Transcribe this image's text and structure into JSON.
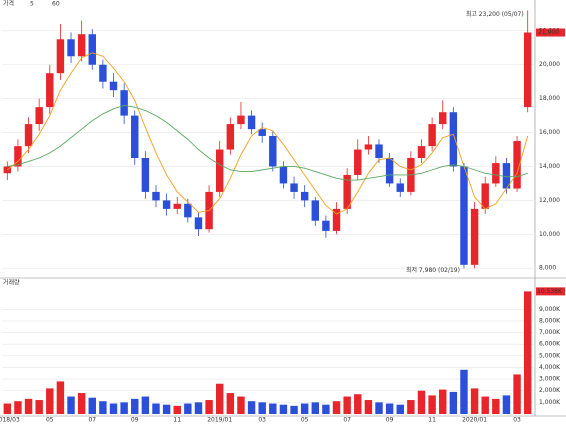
{
  "chart_data": {
    "type": "candlestick",
    "title": "가격",
    "categories": [
      "2018/03",
      null,
      null,
      null,
      "05",
      null,
      null,
      null,
      "07",
      null,
      null,
      null,
      "09",
      null,
      null,
      null,
      "11",
      null,
      null,
      null,
      "2019/01",
      null,
      null,
      null,
      "03",
      null,
      null,
      null,
      "05",
      null,
      null,
      null,
      "07",
      null,
      null,
      null,
      "09",
      null,
      null,
      null,
      "11",
      null,
      null,
      null,
      "2020/01",
      null,
      null,
      null,
      "03",
      null
    ],
    "open": [
      13600,
      14000,
      15200,
      16500,
      17500,
      19500,
      21500,
      20500,
      21800,
      20000,
      19000,
      18500,
      17000,
      14500,
      12500,
      12000,
      11500,
      11800,
      11000,
      10300,
      12500,
      15000,
      16500,
      17000,
      16200,
      15800,
      14000,
      13000,
      12500,
      12000,
      10800,
      10200,
      11500,
      13500,
      15000,
      15300,
      14500,
      13000,
      12500,
      14500,
      15200,
      16500,
      17200,
      14000,
      8200,
      11500,
      13000,
      14200,
      12700,
      17500
    ],
    "high": [
      14300,
      15600,
      16900,
      18000,
      20000,
      22400,
      21900,
      22600,
      22100,
      20300,
      19500,
      18900,
      17300,
      14900,
      12900,
      12400,
      12200,
      12100,
      11300,
      12900,
      15500,
      16900,
      17800,
      17300,
      16600,
      16100,
      14300,
      13400,
      12900,
      12200,
      11100,
      11900,
      13900,
      15600,
      15800,
      15600,
      14800,
      13300,
      14900,
      15600,
      16900,
      17900,
      17500,
      14200,
      11900,
      13400,
      14600,
      14500,
      15800,
      23200
    ],
    "low": [
      13200,
      13700,
      14800,
      16100,
      17100,
      19100,
      20100,
      20200,
      19700,
      18600,
      18100,
      16500,
      14100,
      12100,
      11600,
      11100,
      11200,
      10700,
      9900,
      10100,
      12200,
      14700,
      16200,
      15900,
      15400,
      13700,
      12700,
      12100,
      11600,
      10500,
      9800,
      10000,
      11200,
      13200,
      14700,
      14200,
      12800,
      12200,
      12300,
      14200,
      14900,
      16200,
      13700,
      7980,
      8000,
      11200,
      12800,
      12400,
      12500,
      17200
    ],
    "close": [
      14000,
      15200,
      16500,
      17500,
      19500,
      21500,
      20500,
      21800,
      20000,
      19000,
      18500,
      17000,
      14500,
      12500,
      12000,
      11500,
      11800,
      11000,
      10300,
      12500,
      15000,
      16500,
      17000,
      16200,
      15800,
      14000,
      13000,
      12500,
      12000,
      10800,
      10200,
      11500,
      13500,
      15000,
      15300,
      14500,
      13000,
      12500,
      14500,
      15200,
      16500,
      17200,
      14000,
      8200,
      11500,
      13000,
      14200,
      12700,
      15500,
      21900
    ],
    "up_color": "#e8252b",
    "down_color": "#2b4fd8",
    "series": [
      {
        "name": "5",
        "color": "#f0a020",
        "values": [
          13800,
          14300,
          15000,
          15900,
          17000,
          18500,
          19500,
          20400,
          20700,
          20500,
          19800,
          19000,
          17900,
          16300,
          14800,
          13500,
          12500,
          11900,
          11300,
          11400,
          12100,
          13300,
          14700,
          15800,
          16300,
          16100,
          15300,
          14400,
          13500,
          12600,
          11700,
          11200,
          11500,
          12500,
          13600,
          14400,
          14500,
          14000,
          13800,
          14100,
          14800,
          15700,
          15900,
          14000,
          12200,
          11500,
          11800,
          12700,
          13600,
          15800
        ]
      },
      {
        "name": "60",
        "color": "#5aa860",
        "values": [
          14000,
          14100,
          14300,
          14500,
          14800,
          15200,
          15700,
          16200,
          16700,
          17100,
          17400,
          17600,
          17500,
          17300,
          17000,
          16600,
          16100,
          15600,
          15000,
          14500,
          14100,
          13800,
          13700,
          13700,
          13800,
          13900,
          14000,
          14000,
          13900,
          13700,
          13500,
          13300,
          13200,
          13200,
          13300,
          13400,
          13500,
          13500,
          13500,
          13600,
          13800,
          14000,
          14100,
          14000,
          13800,
          13600,
          13500,
          13400,
          13400,
          13600
        ]
      }
    ],
    "ylim": [
      7600,
      23700
    ],
    "yticks": [
      {
        "value": 8000,
        "label": "8,000"
      },
      {
        "value": 10000,
        "label": "10,000"
      },
      {
        "value": 12000,
        "label": "12,000"
      },
      {
        "value": 14000,
        "label": "14,000"
      },
      {
        "value": 16000,
        "label": "16,000"
      },
      {
        "value": 18000,
        "label": "18,000"
      },
      {
        "value": 20000,
        "label": "20,000"
      },
      {
        "value": 22000,
        "label": "22,000"
      }
    ],
    "annotations": [
      "최고 23,200 (05/07)",
      "최저 7,980 (02/19)",
      "21,900"
    ],
    "volume_title": "거래량",
    "volume": [
      900,
      1100,
      1300,
      1200,
      2200,
      2800,
      1500,
      1800,
      1400,
      1100,
      900,
      1000,
      1300,
      1500,
      900,
      800,
      700,
      900,
      1000,
      1200,
      2600,
      1800,
      1500,
      1100,
      1000,
      900,
      800,
      700,
      900,
      1000,
      800,
      1100,
      1500,
      1700,
      1200,
      1000,
      900,
      800,
      1200,
      2000,
      1600,
      2100,
      1900,
      3800,
      2200,
      1500,
      1300,
      1600,
      3400,
      10538
    ],
    "volume_last_label": "10,538K",
    "vlim": [
      0,
      11000
    ],
    "vticks": [
      {
        "value": 1000,
        "label": "1,000K"
      },
      {
        "value": 2000,
        "label": "2,000K"
      },
      {
        "value": 3000,
        "label": "3,000K"
      },
      {
        "value": 4000,
        "label": "4,000K"
      },
      {
        "value": 5000,
        "label": "5,000K"
      },
      {
        "value": 6000,
        "label": "6,000K"
      },
      {
        "value": 7000,
        "label": "7,000K"
      },
      {
        "value": 8000,
        "label": "8,000K"
      },
      {
        "value": 9000,
        "label": "9,000K"
      }
    ]
  }
}
